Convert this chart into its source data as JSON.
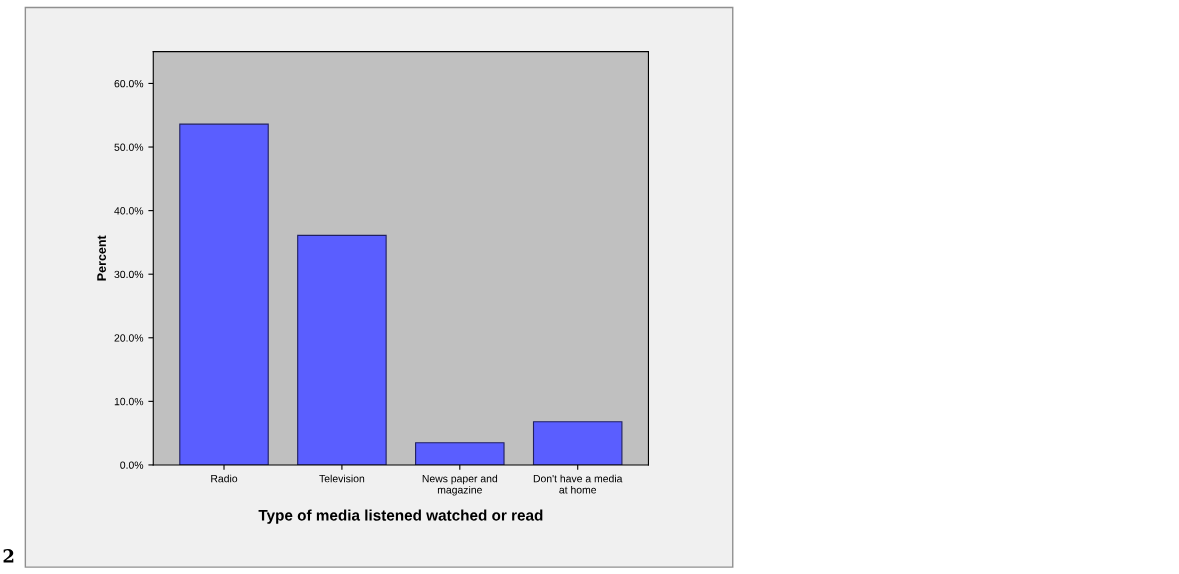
{
  "chart_data": {
    "type": "bar",
    "xlabel": "Type of media listened watched or read",
    "ylabel": "Percent",
    "categories": [
      "Radio",
      "Television",
      "News paper and\nmagazine",
      "Don't have a media\nat home"
    ],
    "values": [
      53.6,
      36.1,
      3.5,
      6.8
    ],
    "color": "#5a5eff",
    "ylim": [
      0,
      65
    ],
    "yticks": [
      {
        "value": 0,
        "label": "0.0%"
      },
      {
        "value": 10,
        "label": "10.0%"
      },
      {
        "value": 20,
        "label": "20.0%"
      },
      {
        "value": 30,
        "label": "30.0%"
      },
      {
        "value": 40,
        "label": "40.0%"
      },
      {
        "value": 50,
        "label": "50.0%"
      },
      {
        "value": 60,
        "label": "60.0%"
      }
    ],
    "grid": false,
    "annotations": [
      "2"
    ]
  }
}
